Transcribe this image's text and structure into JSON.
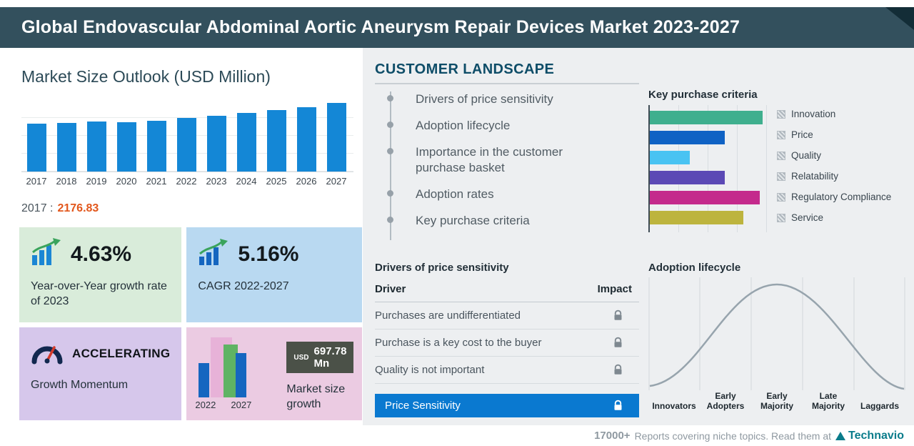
{
  "header": {
    "title": "Global Endovascular Abdominal Aortic Aneurysm Repair Devices Market 2023-2027"
  },
  "market_size": {
    "section_title": "Market Size Outlook (USD Million)",
    "base_year_label": "2017 :",
    "base_year_value": "2176.83",
    "cards": {
      "yoy": {
        "value": "4.63%",
        "label": "Year-over-Year growth rate of 2023"
      },
      "cagr": {
        "value": "5.16%",
        "label": "CAGR 2022-2027"
      },
      "momentum": {
        "value": "ACCELERATING",
        "label": "Growth Momentum"
      },
      "size_growth": {
        "badge_currency": "USD",
        "badge_value": "697.78 Mn",
        "label": "Market size growth",
        "start_year": "2022",
        "end_year": "2027"
      }
    }
  },
  "customer_landscape": {
    "title": "CUSTOMER LANDSCAPE",
    "items": [
      "Drivers of price sensitivity",
      "Adoption lifecycle",
      "Importance in the customer purchase basket",
      "Adoption rates",
      "Key purchase criteria"
    ]
  },
  "key_purchase_criteria": {
    "title": "Key purchase criteria"
  },
  "price_sensitivity": {
    "title": "Drivers of price sensitivity",
    "columns": [
      "Driver",
      "Impact"
    ],
    "rows": [
      "Purchases are undifferentiated",
      "Purchase is a key cost to the buyer",
      "Quality is not important"
    ],
    "highlight": "Price Sensitivity"
  },
  "adoption_lifecycle": {
    "title": "Adoption lifecycle"
  },
  "footer": {
    "count": "17000+",
    "text": "Reports covering niche topics. Read them at",
    "brand": "Technavio"
  },
  "chart_data": [
    {
      "type": "bar",
      "title": "Market Size Outlook (USD Million)",
      "categories": [
        "2017",
        "2018",
        "2019",
        "2020",
        "2021",
        "2022",
        "2023",
        "2024",
        "2025",
        "2026",
        "2027"
      ],
      "values": [
        2176.83,
        2235,
        2292,
        2263,
        2331,
        2443,
        2556,
        2675,
        2798,
        2927,
        3141
      ],
      "ylim": [
        0,
        3300
      ],
      "bar_color": "#1487d6",
      "xlabel": "Year",
      "ylabel": "USD Million",
      "grid": true
    },
    {
      "type": "bar",
      "title": "Key purchase criteria",
      "orientation": "horizontal",
      "categories": [
        "Innovation",
        "Price",
        "Quality",
        "Relatability",
        "Regulatory Compliance",
        "Service"
      ],
      "values": [
        95,
        63,
        34,
        63,
        93,
        79
      ],
      "unit": "relative bar length, % of chart width (unlabeled axis)",
      "colors": [
        "#3faf8e",
        "#0f62c4",
        "#49c3f2",
        "#5b49b5",
        "#c42a8c",
        "#bdb43e"
      ],
      "legend_position": "right",
      "grid": true
    },
    {
      "type": "line",
      "title": "Adoption lifecycle",
      "categories": [
        "Innovators",
        "Early Adopters",
        "Early Majority",
        "Late Majority",
        "Laggards"
      ],
      "values": [
        8,
        45,
        100,
        45,
        8
      ],
      "unit": "relative bell-curve height (unlabeled axis)",
      "line_color": "#97a4ad",
      "grid": true
    }
  ]
}
